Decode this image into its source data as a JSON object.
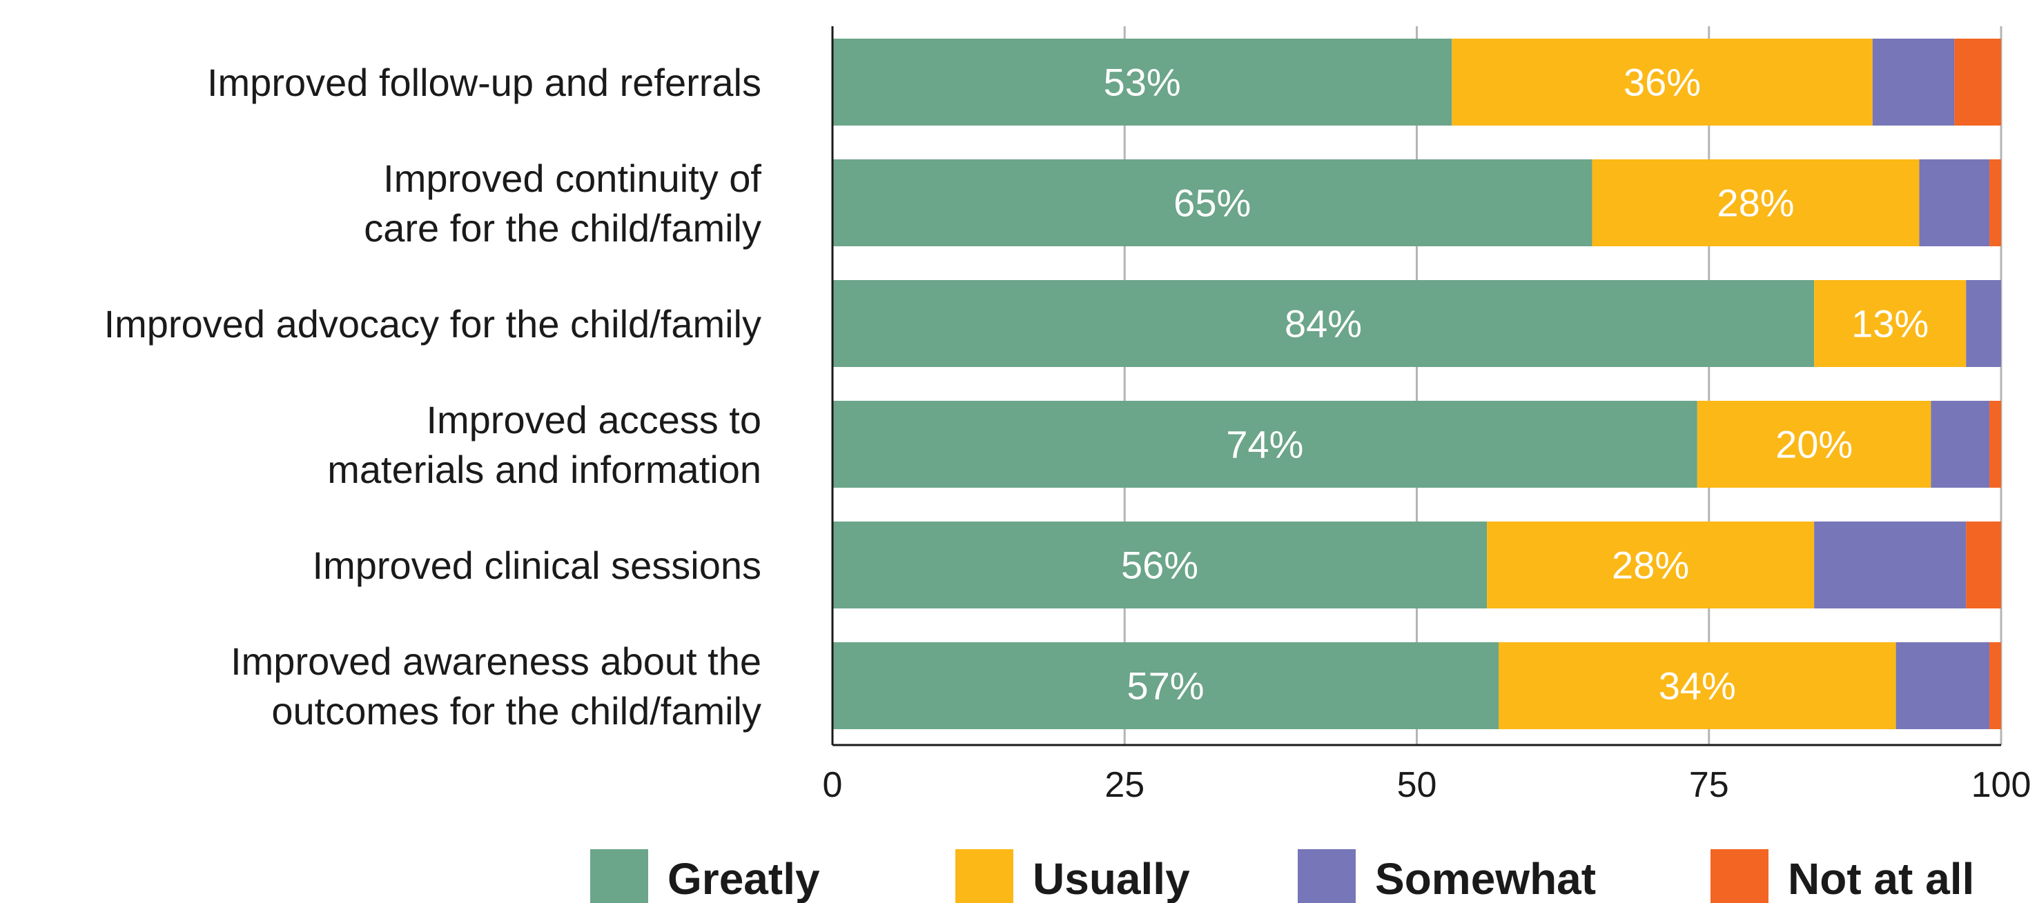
{
  "chart_data": {
    "type": "bar",
    "orientation": "horizontal",
    "stacked": true,
    "categories": [
      [
        "Improved follow-up and referrals"
      ],
      [
        "Improved continuity of",
        "care for the child/family"
      ],
      [
        "Improved advocacy for the child/family"
      ],
      [
        "Improved access to",
        "materials and information"
      ],
      [
        "Improved clinical sessions"
      ],
      [
        "Improved awareness about the",
        "outcomes for the child/family"
      ]
    ],
    "series": [
      {
        "name": "Greatly",
        "color": "#6ba58a",
        "values": [
          53,
          65,
          84,
          74,
          56,
          57
        ],
        "labels": [
          "53%",
          "65%",
          "84%",
          "74%",
          "56%",
          "57%"
        ]
      },
      {
        "name": "Usually",
        "color": "#fbb817",
        "values": [
          36,
          28,
          13,
          20,
          28,
          34
        ],
        "labels": [
          "36%",
          "28%",
          "13%",
          "20%",
          "28%",
          "34%"
        ]
      },
      {
        "name": "Somewhat",
        "color": "#7776b9",
        "values": [
          7,
          6,
          3,
          5,
          13,
          8
        ],
        "labels": [
          "",
          "",
          "",
          "",
          "",
          ""
        ]
      },
      {
        "name": "Not at all",
        "color": "#f26522",
        "values": [
          4,
          1,
          0,
          1,
          3,
          1
        ],
        "labels": [
          "",
          "",
          "",
          "",
          "",
          ""
        ]
      }
    ],
    "xlim": [
      0,
      100
    ],
    "xticks": [
      0,
      25,
      50,
      75,
      100
    ],
    "xtick_labels": [
      "0",
      "25",
      "50",
      "75",
      "100"
    ],
    "grid": true,
    "legend_position": "bottom"
  }
}
